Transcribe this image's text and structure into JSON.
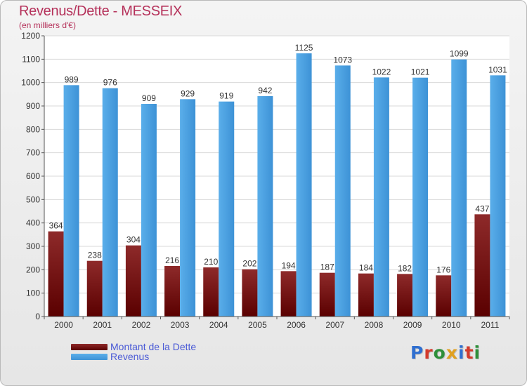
{
  "chart_data": {
    "type": "bar",
    "title": "Revenus/Dette - MESSEIX",
    "subtitle": "(en milliers d'€)",
    "xlabel": "",
    "ylabel": "",
    "categories": [
      "2000",
      "2001",
      "2002",
      "2003",
      "2004",
      "2005",
      "2006",
      "2007",
      "2008",
      "2009",
      "2010",
      "2011"
    ],
    "series": [
      {
        "name": "Montant de la Dette",
        "color": "#7a1010",
        "values": [
          364,
          238,
          304,
          216,
          210,
          202,
          194,
          187,
          184,
          182,
          176,
          437
        ]
      },
      {
        "name": "Revenus",
        "color": "#4aa3e6",
        "values": [
          989,
          976,
          909,
          929,
          919,
          942,
          1125,
          1073,
          1022,
          1021,
          1099,
          1031
        ]
      }
    ],
    "ylim": [
      0,
      1200
    ],
    "yticks": [
      0,
      100,
      200,
      300,
      400,
      500,
      600,
      700,
      800,
      900,
      1000,
      1100,
      1200
    ],
    "grid": true,
    "legend": "bottom-left"
  },
  "logo": {
    "text": "Proxiti",
    "colors": [
      "#2f6fd0",
      "#d33a2c",
      "#2e8f3a",
      "#e0a020",
      "#2f6fd0",
      "#d33a2c",
      "#2e8f3a"
    ]
  }
}
